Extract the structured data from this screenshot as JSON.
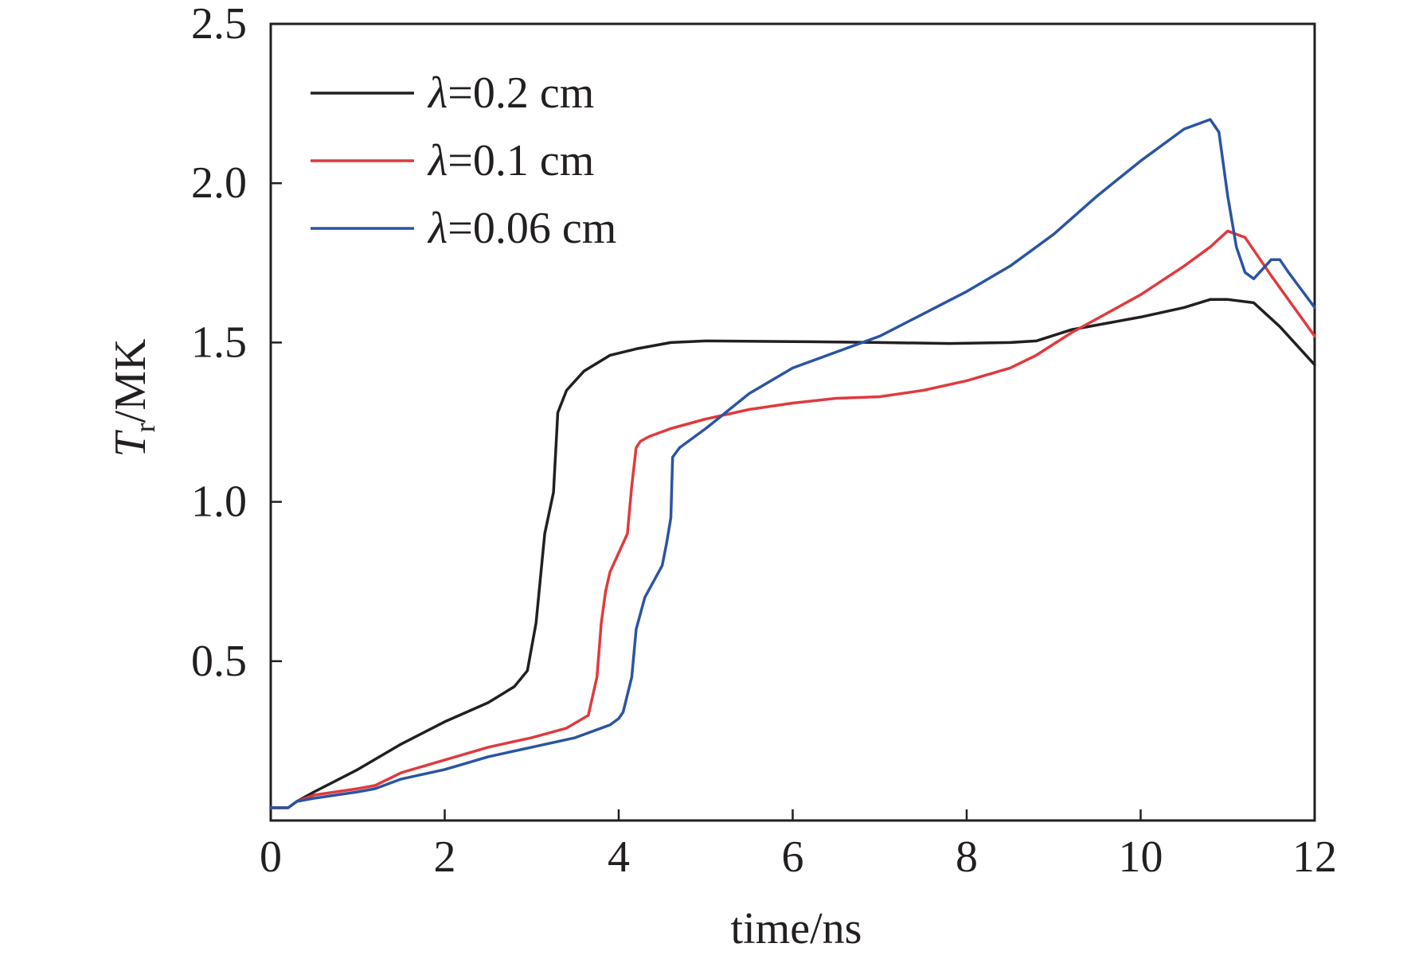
{
  "chart_data": {
    "type": "line",
    "title": "",
    "xlabel": "time/ns",
    "ylabel": {
      "symbol": "T",
      "subscript": "r",
      "unit": "/MK"
    },
    "xlim": [
      0,
      12
    ],
    "ylim": [
      0.0,
      2.5
    ],
    "x_ticks": [
      0,
      2,
      4,
      6,
      8,
      10,
      12
    ],
    "x_tick_labels": [
      "0",
      "2",
      "4",
      "6",
      "8",
      "10",
      "12"
    ],
    "y_ticks": [
      0.5,
      1.0,
      1.5,
      2.0,
      2.5
    ],
    "y_tick_labels": [
      "0.5",
      "1.0",
      "1.5",
      "2.0",
      "2.5"
    ],
    "grid": false,
    "legend_position": "top-left",
    "series": [
      {
        "name": "λ=0.2 cm",
        "label_symbol": "λ",
        "label_rest": "=0.2 cm",
        "color": "#231f20",
        "x": [
          0.0,
          0.2,
          0.3,
          0.5,
          1.0,
          1.5,
          2.0,
          2.5,
          2.8,
          2.95,
          3.05,
          3.15,
          3.25,
          3.3,
          3.4,
          3.6,
          3.9,
          4.2,
          4.6,
          5.0,
          6.0,
          7.0,
          7.8,
          8.5,
          8.8,
          9.2,
          10.0,
          10.5,
          10.8,
          11.0,
          11.3,
          11.6,
          12.0
        ],
        "y": [
          0.04,
          0.04,
          0.06,
          0.09,
          0.16,
          0.24,
          0.31,
          0.37,
          0.42,
          0.47,
          0.62,
          0.9,
          1.03,
          1.28,
          1.35,
          1.41,
          1.46,
          1.48,
          1.5,
          1.505,
          1.503,
          1.5,
          1.497,
          1.5,
          1.505,
          1.54,
          1.58,
          1.61,
          1.635,
          1.635,
          1.625,
          1.55,
          1.43
        ]
      },
      {
        "name": "λ=0.1 cm",
        "label_symbol": "λ",
        "label_rest": "=0.1 cm",
        "color": "#e03a3e",
        "x": [
          0.0,
          0.2,
          0.3,
          0.5,
          1.0,
          1.2,
          1.5,
          2.0,
          2.5,
          3.0,
          3.4,
          3.65,
          3.75,
          3.8,
          3.85,
          3.9,
          4.0,
          4.1,
          4.15,
          4.2,
          4.25,
          4.35,
          4.6,
          5.0,
          5.5,
          6.0,
          6.5,
          7.0,
          7.5,
          8.0,
          8.5,
          8.8,
          9.2,
          9.6,
          10.0,
          10.5,
          10.8,
          11.0,
          11.2,
          11.5,
          12.0
        ],
        "y": [
          0.04,
          0.04,
          0.06,
          0.08,
          0.1,
          0.11,
          0.15,
          0.19,
          0.23,
          0.26,
          0.29,
          0.33,
          0.45,
          0.62,
          0.72,
          0.78,
          0.84,
          0.9,
          1.05,
          1.17,
          1.19,
          1.205,
          1.23,
          1.26,
          1.29,
          1.31,
          1.325,
          1.33,
          1.35,
          1.38,
          1.42,
          1.46,
          1.53,
          1.59,
          1.65,
          1.74,
          1.8,
          1.85,
          1.83,
          1.71,
          1.52
        ]
      },
      {
        "name": "λ=0.06 cm",
        "label_symbol": "λ",
        "label_rest": "=0.06 cm",
        "color": "#2b54a3",
        "x": [
          0.0,
          0.2,
          0.3,
          0.5,
          1.0,
          1.2,
          1.5,
          2.0,
          2.5,
          3.0,
          3.5,
          3.9,
          4.0,
          4.05,
          4.15,
          4.2,
          4.3,
          4.5,
          4.55,
          4.6,
          4.62,
          4.7,
          5.0,
          5.5,
          6.0,
          6.5,
          7.0,
          7.5,
          8.0,
          8.5,
          9.0,
          9.5,
          10.0,
          10.5,
          10.8,
          10.9,
          11.0,
          11.1,
          11.2,
          11.3,
          11.4,
          11.5,
          11.6,
          11.7,
          12.0
        ],
        "y": [
          0.04,
          0.04,
          0.06,
          0.07,
          0.09,
          0.1,
          0.13,
          0.16,
          0.2,
          0.23,
          0.26,
          0.3,
          0.32,
          0.34,
          0.45,
          0.6,
          0.7,
          0.8,
          0.87,
          0.95,
          1.14,
          1.17,
          1.23,
          1.34,
          1.42,
          1.47,
          1.52,
          1.59,
          1.66,
          1.74,
          1.84,
          1.96,
          2.07,
          2.17,
          2.2,
          2.16,
          1.96,
          1.8,
          1.72,
          1.7,
          1.73,
          1.76,
          1.76,
          1.72,
          1.61
        ]
      }
    ]
  }
}
